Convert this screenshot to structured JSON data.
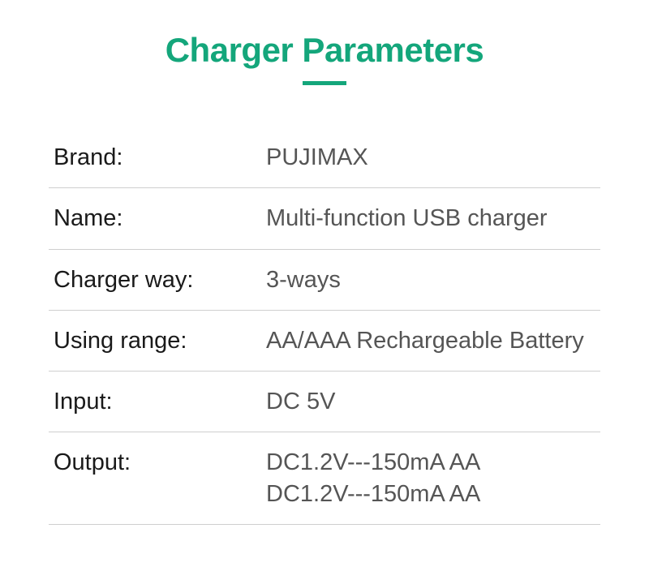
{
  "title": {
    "text": "Charger Parameters",
    "color": "#14a67b",
    "underline_color": "#14a67b",
    "underline_width": 54,
    "underline_height": 5,
    "fontsize": 42
  },
  "table": {
    "label_color": "#1a1a1a",
    "value_color": "#555555",
    "border_color": "#cfcfcf",
    "label_fontsize": 29,
    "value_fontsize": 29,
    "rows": [
      {
        "label": "Brand:",
        "value": "PUJIMAX"
      },
      {
        "label": "Name:",
        "value": "Multi-function USB charger"
      },
      {
        "label": "Charger way:",
        "value": "3-ways"
      },
      {
        "label": "Using range:",
        "value": "AA/AAA Rechargeable Battery"
      },
      {
        "label": "Input:",
        "value": "DC 5V"
      },
      {
        "label": "Output:",
        "value": "DC1.2V---150mA AA\nDC1.2V---150mA AA"
      }
    ]
  },
  "background_color": "#ffffff"
}
